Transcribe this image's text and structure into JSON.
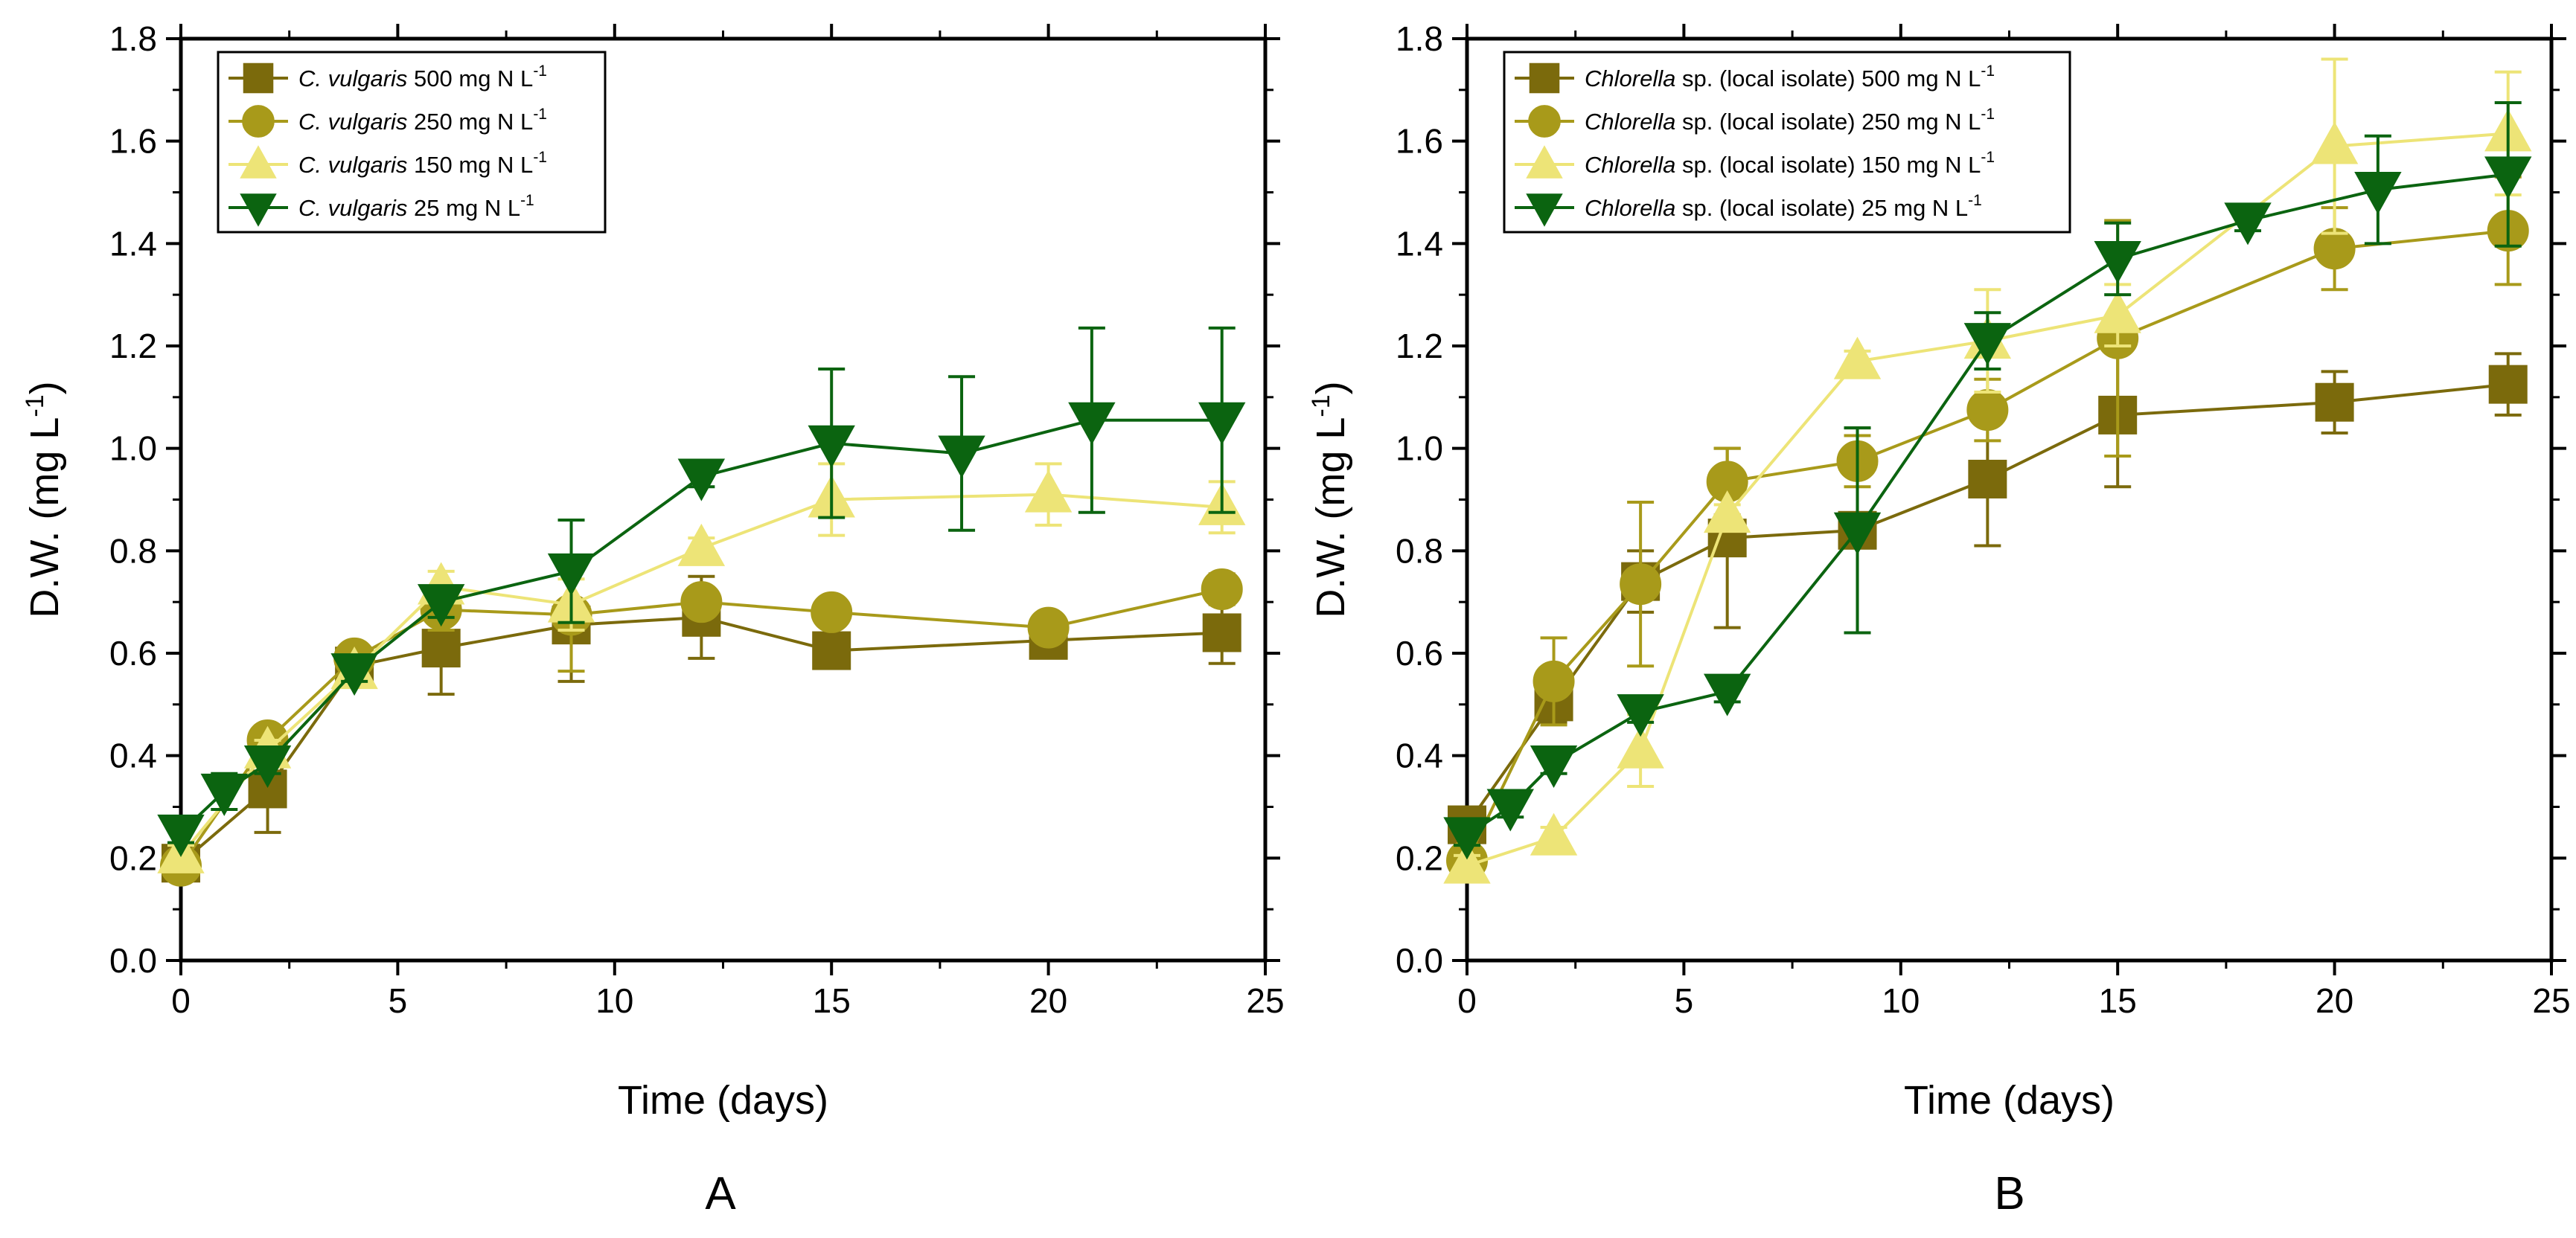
{
  "figure": {
    "panels": [
      {
        "letter": "A",
        "xlabel": "Time (days)",
        "ylabel_main": "D.W. (mg L",
        "ylabel_sup": "-1",
        "ylabel_close": ")",
        "xlim": [
          0,
          25
        ],
        "ylim": [
          0,
          1.8
        ],
        "xticks": [
          0,
          5,
          10,
          15,
          20,
          25
        ],
        "yticks": [
          0.0,
          0.2,
          0.4,
          0.6,
          0.8,
          1.0,
          1.2,
          1.4,
          1.6,
          1.8
        ],
        "ytick_labels": [
          "0.0",
          "0.2",
          "0.4",
          "0.6",
          "0.8",
          "1.0",
          "1.2",
          "1.4",
          "1.6",
          "1.8"
        ],
        "legend": [
          {
            "italic": "C. vulgaris",
            "rest": " 500 mg N L",
            "sup": "-1"
          },
          {
            "italic": "C. vulgaris",
            "rest": " 250 mg N L",
            "sup": "-1"
          },
          {
            "italic": "C. vulgaris",
            "rest": " 150 mg N L",
            "sup": "-1"
          },
          {
            "italic": "C. vulgaris",
            "rest": " 25 mg N L",
            "sup": "-1"
          }
        ]
      },
      {
        "letter": "B",
        "xlabel": "Time (days)",
        "ylabel_main": "D.W. (mg L",
        "ylabel_sup": "-1",
        "ylabel_close": ")",
        "xlim": [
          0,
          25
        ],
        "ylim": [
          0,
          1.8
        ],
        "xticks": [
          0,
          5,
          10,
          15,
          20,
          25
        ],
        "yticks": [
          0.0,
          0.2,
          0.4,
          0.6,
          0.8,
          1.0,
          1.2,
          1.4,
          1.6,
          1.8
        ],
        "ytick_labels": [
          "0.0",
          "0.2",
          "0.4",
          "0.6",
          "0.8",
          "1.0",
          "1.2",
          "1.4",
          "1.6",
          "1.8"
        ],
        "legend": [
          {
            "italic": "Chlorella",
            "rest": " sp. (local isolate) 500 mg N L",
            "sup": "-1"
          },
          {
            "italic": "Chlorella",
            "rest": " sp. (local isolate) 250 mg N L",
            "sup": "-1"
          },
          {
            "italic": "Chlorella",
            "rest": " sp. (local isolate) 150 mg N L",
            "sup": "-1"
          },
          {
            "italic": "Chlorella",
            "rest": " sp. (local isolate) 25 mg N L",
            "sup": "-1"
          }
        ]
      }
    ]
  },
  "chart_data": [
    {
      "type": "line",
      "xlabel": "Time (days)",
      "ylabel": "D.W. (mg L-1)",
      "xlim": [
        0,
        25
      ],
      "ylim": [
        0,
        1.8
      ],
      "grid": false,
      "legend_position": "top-left",
      "series": [
        {
          "name": "C. vulgaris 500 mg N L-1",
          "marker": "square",
          "color": "#7b6a0c",
          "x": [
            0,
            2,
            4,
            6,
            9,
            12,
            15,
            20,
            24
          ],
          "y": [
            0.19,
            0.335,
            0.575,
            0.61,
            0.655,
            0.67,
            0.605,
            0.625,
            0.64
          ],
          "err": [
            0.03,
            0.085,
            0.02,
            0.09,
            0.11,
            0.08,
            0.02,
            0.02,
            0.06
          ]
        },
        {
          "name": "C. vulgaris 250 mg N L-1",
          "marker": "circle",
          "color": "#a89a1a",
          "x": [
            0,
            2,
            4,
            6,
            9,
            12,
            15,
            20,
            24
          ],
          "y": [
            0.185,
            0.43,
            0.59,
            0.685,
            0.675,
            0.7,
            0.68,
            0.65,
            0.725
          ],
          "err": [
            0.02,
            0.02,
            0.02,
            0.04,
            0.11,
            0.01,
            0.01,
            0.02,
            0.03
          ]
        },
        {
          "name": "C. vulgaris 150 mg N L-1",
          "marker": "triangle-up",
          "color": "#ede477",
          "x": [
            0,
            2,
            4,
            6,
            9,
            12,
            15,
            20,
            24
          ],
          "y": [
            0.205,
            0.41,
            0.565,
            0.73,
            0.695,
            0.805,
            0.9,
            0.91,
            0.885
          ],
          "err": [
            0.02,
            0.02,
            0.02,
            0.03,
            0.05,
            0.02,
            0.07,
            0.06,
            0.05
          ]
        },
        {
          "name": "C. vulgaris 25 mg N L-1",
          "marker": "triangle-down",
          "color": "#0b6410",
          "x": [
            0,
            1,
            2,
            4,
            6,
            9,
            12,
            15,
            18,
            21,
            24
          ],
          "y": [
            0.25,
            0.33,
            0.385,
            0.565,
            0.7,
            0.76,
            0.945,
            1.01,
            0.99,
            1.055,
            1.055
          ],
          "err": [
            0.02,
            0.035,
            0.02,
            0.02,
            0.03,
            0.1,
            0.02,
            0.145,
            0.15,
            0.18,
            0.18
          ]
        }
      ]
    },
    {
      "type": "line",
      "xlabel": "Time (days)",
      "ylabel": "D.W. (mg L-1)",
      "xlim": [
        0,
        25
      ],
      "ylim": [
        0,
        1.8
      ],
      "grid": false,
      "legend_position": "top-left",
      "series": [
        {
          "name": "Chlorella sp. (local isolate) 500 mg N L-1",
          "marker": "square",
          "color": "#7b6a0c",
          "x": [
            0,
            2,
            4,
            6,
            9,
            12,
            15,
            20,
            24
          ],
          "y": [
            0.265,
            0.505,
            0.74,
            0.825,
            0.84,
            0.94,
            1.065,
            1.09,
            1.125
          ],
          "err": [
            0.02,
            0.04,
            0.06,
            0.175,
            0.2,
            0.13,
            0.14,
            0.06,
            0.06
          ]
        },
        {
          "name": "Chlorella sp. (local isolate) 250 mg N L-1",
          "marker": "circle",
          "color": "#a89a1a",
          "x": [
            0,
            2,
            4,
            6,
            9,
            12,
            15,
            20,
            24
          ],
          "y": [
            0.195,
            0.545,
            0.735,
            0.935,
            0.975,
            1.075,
            1.215,
            1.39,
            1.425
          ],
          "err": [
            0.02,
            0.085,
            0.16,
            0.065,
            0.05,
            0.06,
            0.23,
            0.08,
            0.105
          ]
        },
        {
          "name": "Chlorella sp. (local isolate) 150 mg N L-1",
          "marker": "triangle-up",
          "color": "#ede477",
          "x": [
            0,
            2,
            4,
            6,
            9,
            12,
            15,
            20,
            24
          ],
          "y": [
            0.185,
            0.24,
            0.41,
            0.87,
            1.17,
            1.21,
            1.26,
            1.59,
            1.615
          ],
          "err": [
            0.02,
            0.02,
            0.07,
            0.02,
            0.02,
            0.1,
            0.06,
            0.17,
            0.12
          ]
        },
        {
          "name": "Chlorella sp. (local isolate) 25 mg N L-1",
          "marker": "triangle-down",
          "color": "#0b6410",
          "x": [
            0,
            1,
            2,
            4,
            6,
            9,
            12,
            15,
            18,
            21,
            24
          ],
          "y": [
            0.245,
            0.3,
            0.385,
            0.485,
            0.525,
            0.84,
            1.21,
            1.37,
            1.445,
            1.505,
            1.535
          ],
          "err": [
            0.02,
            0.02,
            0.02,
            0.02,
            0.02,
            0.2,
            0.055,
            0.07,
            0.02,
            0.105,
            0.14
          ]
        }
      ]
    }
  ]
}
